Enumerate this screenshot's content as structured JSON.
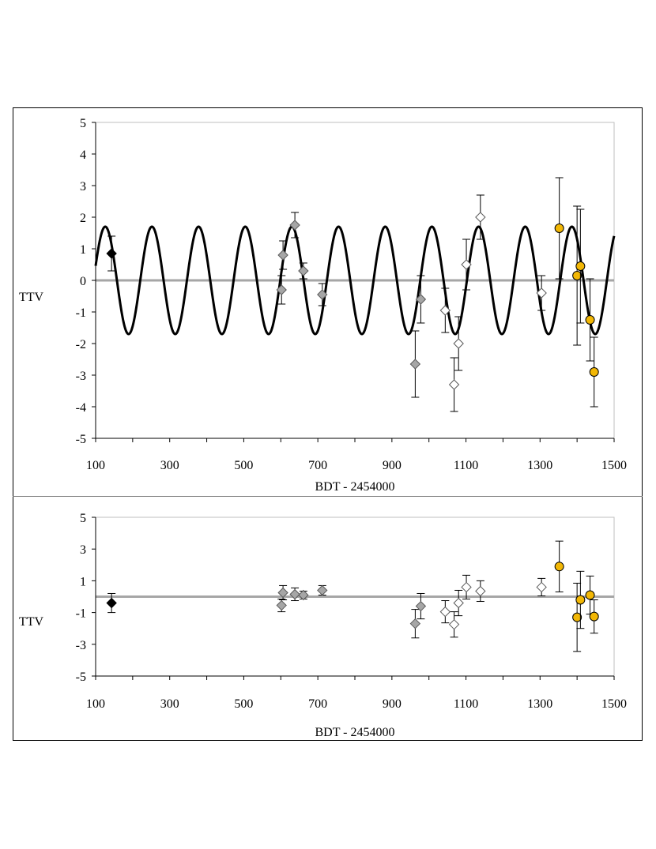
{
  "chart_data": [
    {
      "type": "scatter",
      "xlabel": "BDT - 2454000",
      "ylabel": "TTV",
      "xlim": [
        100,
        1500
      ],
      "ylim": [
        -5,
        5
      ],
      "xticks": [
        100,
        300,
        500,
        700,
        900,
        1100,
        1300,
        1500
      ],
      "yticks": [
        5,
        4,
        3,
        2,
        1,
        0,
        -1,
        -2,
        -3,
        -4,
        -5
      ],
      "grid": false,
      "zero_line": true,
      "model_curve": {
        "amplitude": 1.7,
        "period": 126,
        "peak_at": 126
      },
      "series": [
        {
          "marker": "diamond",
          "fill": "#000000",
          "points": [
            {
              "x": 143,
              "y": 0.85,
              "err": 0.55
            }
          ]
        },
        {
          "marker": "diamond",
          "fill": "#a6a6a6",
          "points": [
            {
              "x": 602,
              "y": -0.3,
              "err": 0.45
            },
            {
              "x": 606,
              "y": 0.8,
              "err": 0.45
            },
            {
              "x": 638,
              "y": 1.75,
              "err": 0.4
            },
            {
              "x": 661,
              "y": 0.3,
              "err": 0.25
            },
            {
              "x": 712,
              "y": -0.45,
              "err": 0.35
            },
            {
              "x": 963,
              "y": -2.65,
              "err": 1.05
            },
            {
              "x": 978,
              "y": -0.6,
              "err": 0.75
            }
          ]
        },
        {
          "marker": "diamond",
          "fill": "#ffffff",
          "points": [
            {
              "x": 1044,
              "y": -0.95,
              "err": 0.7
            },
            {
              "x": 1068,
              "y": -3.3,
              "err": 0.85
            },
            {
              "x": 1080,
              "y": -2.0,
              "err": 0.85
            },
            {
              "x": 1101,
              "y": 0.5,
              "err": 0.8
            },
            {
              "x": 1139,
              "y": 2.0,
              "err": 0.7
            },
            {
              "x": 1304,
              "y": -0.4,
              "err": 0.55
            }
          ]
        },
        {
          "marker": "circle",
          "fill": "#f2b705",
          "points": [
            {
              "x": 1352,
              "y": 1.65,
              "err": 1.6
            },
            {
              "x": 1400,
              "y": 0.15,
              "err": 2.2
            },
            {
              "x": 1409,
              "y": 0.45,
              "err": 1.8
            },
            {
              "x": 1435,
              "y": -1.25,
              "err": 1.3
            },
            {
              "x": 1446,
              "y": -2.9,
              "err": 1.1
            }
          ]
        }
      ]
    },
    {
      "type": "scatter",
      "xlabel": "BDT - 2454000",
      "ylabel": "TTV",
      "xlim": [
        100,
        1500
      ],
      "ylim": [
        -5,
        5
      ],
      "xticks": [
        100,
        300,
        500,
        700,
        900,
        1100,
        1300,
        1500
      ],
      "yticks": [
        5,
        3,
        1,
        -1,
        -3,
        -5
      ],
      "grid": false,
      "zero_line": true,
      "series": [
        {
          "marker": "diamond",
          "fill": "#000000",
          "points": [
            {
              "x": 143,
              "y": -0.4,
              "err": 0.6
            }
          ]
        },
        {
          "marker": "diamond",
          "fill": "#a6a6a6",
          "points": [
            {
              "x": 602,
              "y": -0.55,
              "err": 0.4
            },
            {
              "x": 606,
              "y": 0.25,
              "err": 0.45
            },
            {
              "x": 638,
              "y": 0.15,
              "err": 0.4
            },
            {
              "x": 661,
              "y": 0.1,
              "err": 0.25
            },
            {
              "x": 712,
              "y": 0.4,
              "err": 0.3
            },
            {
              "x": 963,
              "y": -1.7,
              "err": 0.9
            },
            {
              "x": 978,
              "y": -0.6,
              "err": 0.8
            }
          ]
        },
        {
          "marker": "diamond",
          "fill": "#ffffff",
          "points": [
            {
              "x": 1044,
              "y": -0.95,
              "err": 0.7
            },
            {
              "x": 1068,
              "y": -1.75,
              "err": 0.8
            },
            {
              "x": 1080,
              "y": -0.4,
              "err": 0.8
            },
            {
              "x": 1101,
              "y": 0.6,
              "err": 0.75
            },
            {
              "x": 1139,
              "y": 0.35,
              "err": 0.65
            },
            {
              "x": 1304,
              "y": 0.6,
              "err": 0.55
            }
          ]
        },
        {
          "marker": "circle",
          "fill": "#f2b705",
          "points": [
            {
              "x": 1352,
              "y": 1.9,
              "err": 1.6
            },
            {
              "x": 1400,
              "y": -1.3,
              "err": 2.15
            },
            {
              "x": 1409,
              "y": -0.2,
              "err": 1.8
            },
            {
              "x": 1435,
              "y": 0.1,
              "err": 1.2
            },
            {
              "x": 1446,
              "y": -1.25,
              "err": 1.05
            }
          ]
        }
      ]
    }
  ]
}
